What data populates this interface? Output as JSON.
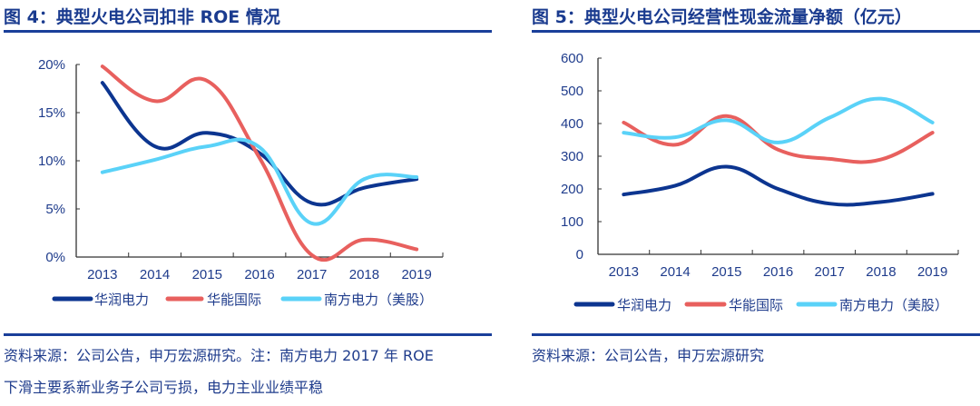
{
  "colors": {
    "华润电力": "#0c3590",
    "华能国际": "#e8605e",
    "南方电力": "#5ad2f8",
    "text": "#1f3c8c",
    "rule": "#1a3f9a"
  },
  "left": {
    "title": "图 4：典型火电公司扣非 ROE 情况",
    "footnote_line1": "资料来源：公司公告，申万宏源研究。注：南方电力 2017 年 ROE",
    "footnote_line2": "下滑主要系新业务子公司亏损，电力主业业绩平稳"
  },
  "right": {
    "title": "图 5：典型火电公司经营性现金流量净额（亿元）",
    "footnote_line1": "资料来源：公司公告，申万宏源研究"
  },
  "chart_data": [
    {
      "type": "line",
      "title": "图 4：典型火电公司扣非 ROE 情况",
      "categories": [
        "2013",
        "2014",
        "2015",
        "2016",
        "2017",
        "2018",
        "2019"
      ],
      "ylim": [
        0,
        20
      ],
      "yticks": [
        "0%",
        "5%",
        "10%",
        "15%",
        "20%"
      ],
      "ytick_values": [
        0,
        5,
        10,
        15,
        20
      ],
      "grid": false,
      "smooth": true,
      "legend": "bottom",
      "series": [
        {
          "name": "华润电力",
          "color": "#0c3590",
          "values": [
            18.1,
            11.5,
            12.9,
            10.8,
            5.6,
            7.2,
            8.1
          ]
        },
        {
          "name": "华能国际",
          "color": "#e8605e",
          "values": [
            19.8,
            16.2,
            18.3,
            10.3,
            0.2,
            1.8,
            0.8
          ]
        },
        {
          "name": "南方电力（美股）",
          "color": "#5ad2f8",
          "values": [
            8.8,
            10.1,
            11.5,
            11.4,
            3.5,
            8.1,
            8.3
          ]
        }
      ]
    },
    {
      "type": "line",
      "title": "图 5：典型火电公司经营性现金流量净额（亿元）",
      "categories": [
        "2013",
        "2014",
        "2015",
        "2016",
        "2017",
        "2018",
        "2019"
      ],
      "ylim": [
        0,
        600
      ],
      "yticks": [
        "0",
        "100",
        "200",
        "300",
        "400",
        "500",
        "600"
      ],
      "ytick_values": [
        0,
        100,
        200,
        300,
        400,
        500,
        600
      ],
      "grid": false,
      "smooth": true,
      "legend": "bottom",
      "series": [
        {
          "name": "华润电力",
          "color": "#0c3590",
          "values": [
            183,
            210,
            268,
            200,
            155,
            160,
            185
          ]
        },
        {
          "name": "华能国际",
          "color": "#e8605e",
          "values": [
            403,
            335,
            423,
            320,
            292,
            290,
            372
          ]
        },
        {
          "name": "南方电力（美股）",
          "color": "#5ad2f8",
          "values": [
            372,
            358,
            410,
            342,
            418,
            476,
            403
          ]
        }
      ]
    }
  ]
}
